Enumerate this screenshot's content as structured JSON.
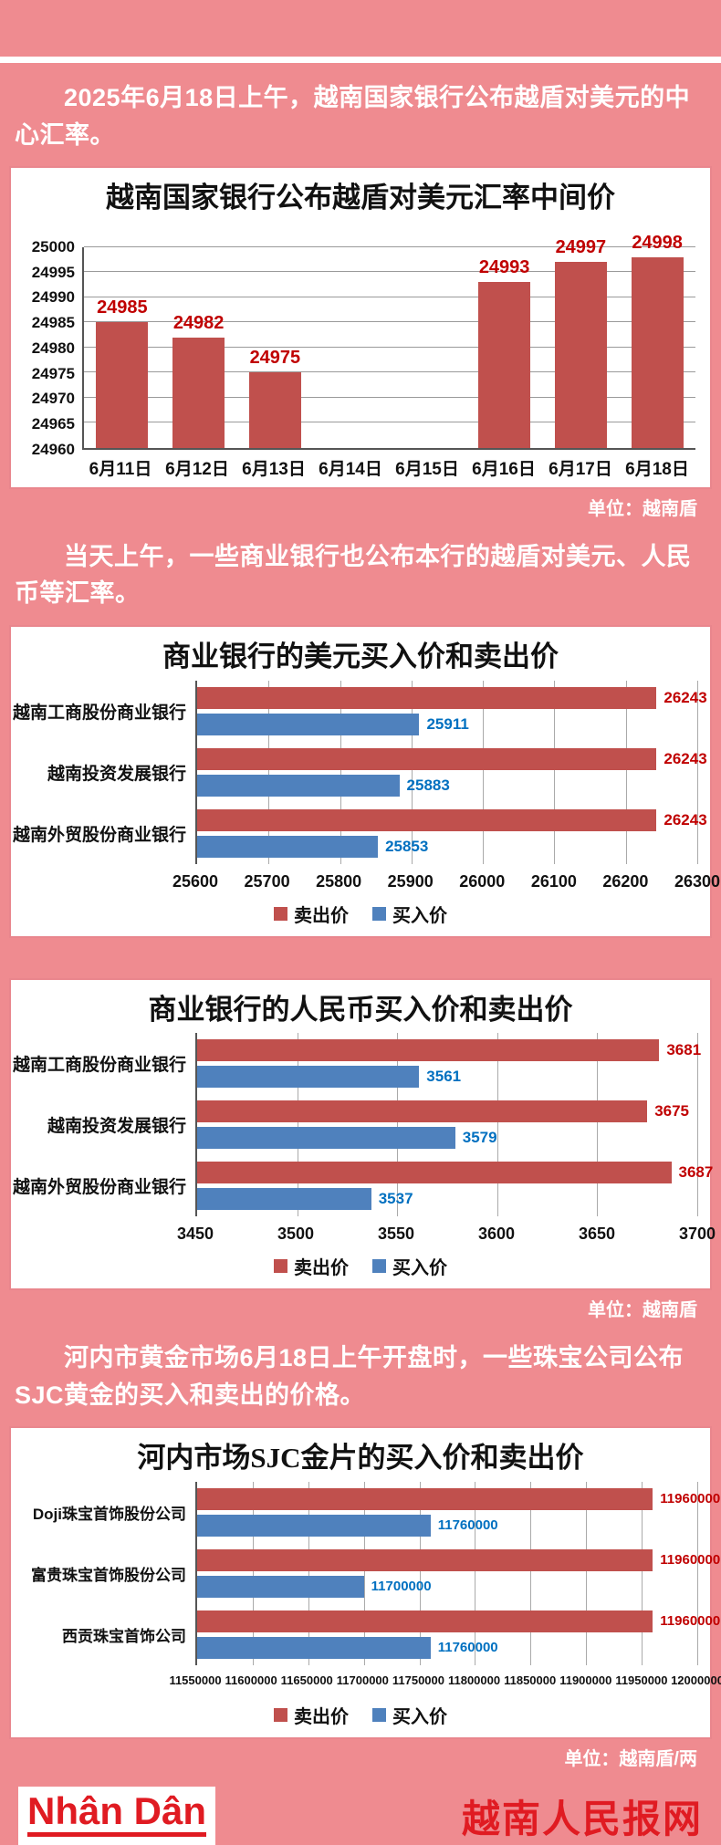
{
  "colors": {
    "page_background": "#ef8b90",
    "sell_bar": "#c0504d",
    "buy_bar": "#4f81bd",
    "sell_label": "#c00000",
    "buy_label": "#0070c0",
    "brand_red": "#e01b22"
  },
  "paragraphs": {
    "p1": "2025年6月18日上午，越南国家银行公布越盾对美元的中心汇率。",
    "p2": "当天上午，一些商业银行也公布本行的越盾对美元、人民币等汇率。",
    "p3": "河内市黄金市场6月18日上午开盘时，一些珠宝公司公布SJC黄金的买入和卖出的价格。"
  },
  "captions": {
    "unit_vnd_1": "单位：越南盾",
    "unit_vnd_2": "单位：越南盾",
    "unit_vnd_per_tael": "单位：越南盾/两"
  },
  "footer": {
    "logo_text": "Nhân Dân",
    "site_name": "越南人民报网"
  },
  "chart_data": [
    {
      "type": "bar",
      "title": "越南国家银行公布越盾对美元汇率中间价",
      "categories": [
        "6月11日",
        "6月12日",
        "6月13日",
        "6月14日",
        "6月15日",
        "6月16日",
        "6月17日",
        "6月18日"
      ],
      "values": [
        24985,
        24982,
        24975,
        null,
        null,
        24993,
        24997,
        24998
      ],
      "ylim": [
        24960,
        25000
      ],
      "ytick_step": 5,
      "grid": true,
      "bar_color": "#c0504d",
      "label_color": "#c00000",
      "unit": "越南盾"
    },
    {
      "type": "bar-horizontal",
      "title": "商业银行的美元买入价和卖出价",
      "categories": [
        "越南工商股份商业银行",
        "越南投资发展银行",
        "越南外贸股份商业银行"
      ],
      "series": [
        {
          "key": "sell",
          "name": "卖出价",
          "values": [
            26243,
            26243,
            26243
          ],
          "color": "#c0504d",
          "label_color": "#c00000"
        },
        {
          "key": "buy",
          "name": "买入价",
          "values": [
            25911,
            25883,
            25853
          ],
          "color": "#4f81bd",
          "label_color": "#0070c0"
        }
      ],
      "xlim": [
        25600,
        26300
      ],
      "xtick_step": 100,
      "grid": true,
      "legend_position": "bottom",
      "unit": "越南盾"
    },
    {
      "type": "bar-horizontal",
      "title": "商业银行的人民币买入价和卖出价",
      "categories": [
        "越南工商股份商业银行",
        "越南投资发展银行",
        "越南外贸股份商业银行"
      ],
      "series": [
        {
          "key": "sell",
          "name": "卖出价",
          "values": [
            3681,
            3675,
            3687
          ],
          "color": "#c0504d",
          "label_color": "#c00000"
        },
        {
          "key": "buy",
          "name": "买入价",
          "values": [
            3561,
            3579,
            3537
          ],
          "color": "#4f81bd",
          "label_color": "#0070c0"
        }
      ],
      "xlim": [
        3450,
        3700
      ],
      "xtick_step": 50,
      "grid": true,
      "legend_position": "bottom",
      "unit": "越南盾"
    },
    {
      "type": "bar-horizontal",
      "title": "河内市场SJC金片的买入价和卖出价",
      "categories": [
        "Doji珠宝首饰股份公司",
        "富贵珠宝首饰股份公司",
        "西贡珠宝首饰公司"
      ],
      "series": [
        {
          "key": "sell",
          "name": "卖出价",
          "values": [
            11960000,
            11960000,
            11960000
          ],
          "color": "#c0504d",
          "label_color": "#c00000"
        },
        {
          "key": "buy",
          "name": "买入价",
          "values": [
            11760000,
            11700000,
            11760000
          ],
          "color": "#4f81bd",
          "label_color": "#0070c0"
        }
      ],
      "xlim": [
        11550000,
        12000000
      ],
      "xtick_step": 50000,
      "grid": true,
      "legend_position": "bottom",
      "unit": "越南盾/两"
    }
  ]
}
